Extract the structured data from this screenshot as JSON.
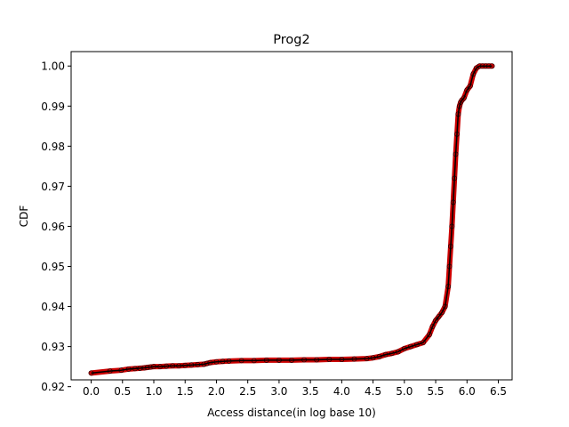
{
  "chart_data": {
    "type": "line",
    "title": "Prog2",
    "xlabel": "Access distance(in log base 10)",
    "ylabel": "CDF",
    "xlim": [
      -0.32,
      6.72
    ],
    "ylim": [
      0.9217,
      1.0036
    ],
    "xticks": [
      0.0,
      0.5,
      1.0,
      1.5,
      2.0,
      2.5,
      3.0,
      3.5,
      4.0,
      4.5,
      5.0,
      5.5,
      6.0,
      6.5
    ],
    "xtick_labels": [
      "0.0",
      "0.5",
      "1.0",
      "1.5",
      "2.0",
      "2.5",
      "3.0",
      "3.5",
      "4.0",
      "4.5",
      "5.0",
      "5.5",
      "6.0",
      "6.5"
    ],
    "yticks": [
      0.92,
      0.93,
      0.94,
      0.95,
      0.96,
      0.97,
      0.98,
      0.99,
      1.0
    ],
    "ytick_labels": [
      "0.92",
      "0.93",
      "0.94",
      "0.95",
      "0.96",
      "0.97",
      "0.98",
      "0.99",
      "1.00"
    ],
    "grid": false,
    "series": [
      {
        "line_color": "#000000",
        "marker_color": "#cc0000",
        "x": [
          0.0,
          0.3,
          0.48,
          0.6,
          0.7,
          0.78,
          0.85,
          0.9,
          0.95,
          1.0,
          1.1,
          1.2,
          1.3,
          1.4,
          1.5,
          1.6,
          1.7,
          1.8,
          1.85,
          1.9,
          2.0,
          2.1,
          2.2,
          2.4,
          2.6,
          2.8,
          3.0,
          3.2,
          3.4,
          3.6,
          3.8,
          4.0,
          4.2,
          4.4,
          4.5,
          4.6,
          4.7,
          4.8,
          4.9,
          5.0,
          5.1,
          5.2,
          5.3,
          5.4,
          5.45,
          5.5,
          5.55,
          5.6,
          5.65,
          5.7,
          5.72,
          5.74,
          5.76,
          5.78,
          5.8,
          5.82,
          5.84,
          5.86,
          5.88,
          5.9,
          5.92,
          5.95,
          6.0,
          6.05,
          6.1,
          6.15,
          6.2,
          6.25,
          6.3,
          6.35,
          6.4
        ],
        "y": [
          0.9234,
          0.9239,
          0.9241,
          0.9244,
          0.9245,
          0.9246,
          0.9247,
          0.9248,
          0.9249,
          0.925,
          0.925,
          0.9251,
          0.9252,
          0.9252,
          0.9253,
          0.9254,
          0.9255,
          0.9256,
          0.9258,
          0.926,
          0.9262,
          0.9263,
          0.9264,
          0.9265,
          0.9265,
          0.9266,
          0.9266,
          0.9266,
          0.9267,
          0.9267,
          0.9268,
          0.9268,
          0.9269,
          0.927,
          0.9272,
          0.9275,
          0.928,
          0.9283,
          0.9287,
          0.9295,
          0.93,
          0.9305,
          0.931,
          0.933,
          0.935,
          0.9365,
          0.9375,
          0.9385,
          0.94,
          0.945,
          0.95,
          0.955,
          0.96,
          0.966,
          0.972,
          0.978,
          0.983,
          0.988,
          0.99,
          0.991,
          0.9915,
          0.992,
          0.994,
          0.995,
          0.998,
          0.9995,
          1.0,
          1.0,
          1.0,
          1.0,
          1.0
        ]
      }
    ]
  }
}
